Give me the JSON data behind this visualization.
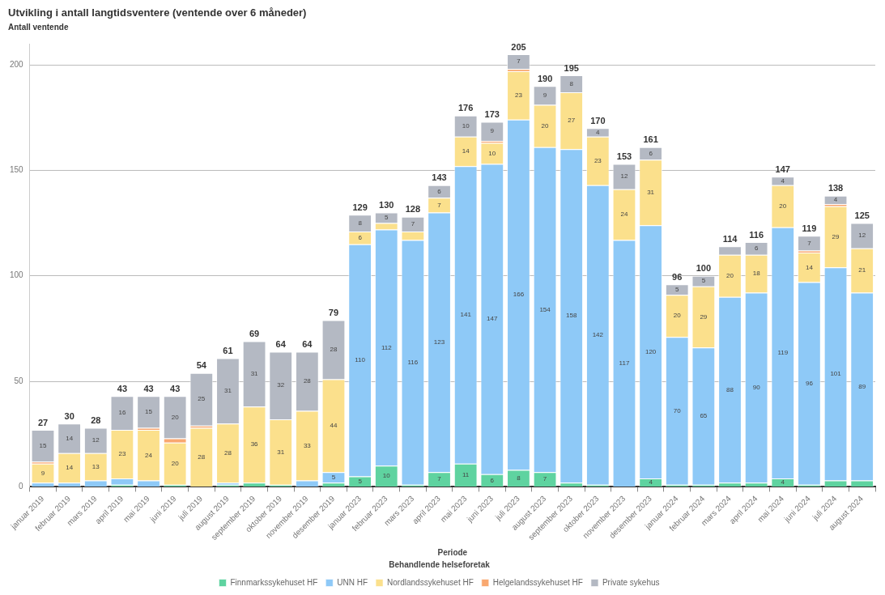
{
  "chart_data": {
    "type": "bar",
    "stacked": true,
    "title": "Utvikling i antall langtidsventere (ventende over 6 måneder)",
    "ylabel": "Antall ventende",
    "xlabel": "Periode",
    "legend_title": "Behandlende helseforetak",
    "legend": "bottom",
    "grid": "y",
    "ylim": [
      0,
      210
    ],
    "yticks": [
      0,
      50,
      100,
      150,
      200
    ],
    "categories": [
      "januar 2019",
      "februar 2019",
      "mars 2019",
      "april 2019",
      "mai 2019",
      "juni 2019",
      "juli 2019",
      "august 2019",
      "september 2019",
      "oktober 2019",
      "november 2019",
      "desember 2019",
      "januar 2023",
      "februar 2023",
      "mars 2023",
      "april 2023",
      "mai 2023",
      "juni 2023",
      "juli 2023",
      "august 2023",
      "september 2023",
      "oktober 2023",
      "november 2023",
      "desember 2023",
      "januar 2024",
      "februar 2024",
      "mars 2024",
      "april 2024",
      "mai 2024",
      "juni 2024",
      "juli 2024",
      "august 2024"
    ],
    "series": [
      {
        "name": "Finnmarkssykehuset HF",
        "color": "#5fd3a0",
        "values": [
          0,
          0,
          0,
          1,
          0,
          1,
          0,
          1,
          2,
          1,
          0,
          2,
          5,
          10,
          1,
          7,
          11,
          6,
          8,
          7,
          2,
          1,
          0,
          4,
          1,
          1,
          2,
          2,
          4,
          1,
          3,
          3
        ],
        "value_labels": [
          null,
          null,
          null,
          null,
          null,
          null,
          null,
          null,
          null,
          null,
          null,
          null,
          "5",
          "10",
          null,
          "7",
          "11",
          "6",
          "8",
          "7",
          null,
          null,
          null,
          "4",
          null,
          null,
          null,
          null,
          "4",
          null,
          null,
          null
        ]
      },
      {
        "name": "UNN HF",
        "color": "#8ec9f7",
        "values": [
          2,
          2,
          3,
          3,
          3,
          0,
          0,
          1,
          0,
          0,
          3,
          5,
          110,
          112,
          116,
          123,
          141,
          147,
          166,
          154,
          158,
          142,
          117,
          120,
          70,
          65,
          88,
          90,
          119,
          96,
          101,
          89
        ],
        "value_labels": [
          null,
          null,
          null,
          null,
          null,
          null,
          null,
          null,
          null,
          null,
          null,
          "5",
          "110",
          "112",
          "116",
          "123",
          "141",
          "147",
          "166",
          "154",
          "158",
          "142",
          "117",
          "120",
          "70",
          "65",
          "88",
          "90",
          "119",
          "96",
          "101",
          "89"
        ]
      },
      {
        "name": "Nordlandssykehuset HF",
        "color": "#fbe08c",
        "values": [
          9,
          14,
          13,
          23,
          24,
          20,
          28,
          28,
          36,
          31,
          33,
          44,
          6,
          3,
          4,
          7,
          14,
          10,
          23,
          20,
          27,
          23,
          24,
          31,
          20,
          29,
          20,
          18,
          20,
          14,
          29,
          21
        ],
        "value_labels": [
          "9",
          "14",
          "13",
          "23",
          "24",
          "20",
          "28",
          "28",
          "36",
          "31",
          "33",
          "44",
          "6",
          null,
          null,
          "7",
          "14",
          "10",
          "23",
          "20",
          "27",
          "23",
          "24",
          "31",
          "20",
          "29",
          "20",
          "18",
          "20",
          "14",
          "29",
          "21"
        ]
      },
      {
        "name": "Helgelandssykehuset HF",
        "color": "#f9a870",
        "values": [
          1,
          0,
          0,
          0,
          1,
          2,
          1,
          0,
          0,
          0,
          0,
          0,
          0,
          0,
          0,
          0,
          0,
          1,
          1,
          0,
          0,
          0,
          0,
          0,
          0,
          0,
          0,
          0,
          0,
          1,
          1,
          0
        ]
      },
      {
        "name": "Private sykehus",
        "color": "#b4b9c3",
        "values": [
          15,
          14,
          12,
          16,
          15,
          20,
          25,
          31,
          31,
          32,
          28,
          28,
          8,
          5,
          7,
          6,
          10,
          9,
          7,
          9,
          8,
          4,
          12,
          6,
          5,
          5,
          4,
          6,
          4,
          7,
          4,
          12
        ],
        "value_labels": [
          "15",
          "14",
          "12",
          "16",
          "15",
          "20",
          "25",
          "31",
          "31",
          "32",
          "28",
          "28",
          "8",
          "5",
          "7",
          "6",
          "10",
          "9",
          "7",
          "9",
          "8",
          "4",
          "12",
          "6",
          "5",
          "5",
          null,
          "6",
          "4",
          "7",
          "4",
          "12"
        ]
      }
    ],
    "totals": [
      "27",
      "30",
      "28",
      "43",
      "43",
      "43",
      "54",
      "61",
      "69",
      "64",
      "64",
      "79",
      "129",
      "130",
      "128",
      "143",
      "176",
      "173",
      "205",
      "190",
      "195",
      "170",
      "153",
      "161",
      "96",
      "100",
      "114",
      "116",
      "147",
      "119",
      "138",
      "125"
    ]
  }
}
